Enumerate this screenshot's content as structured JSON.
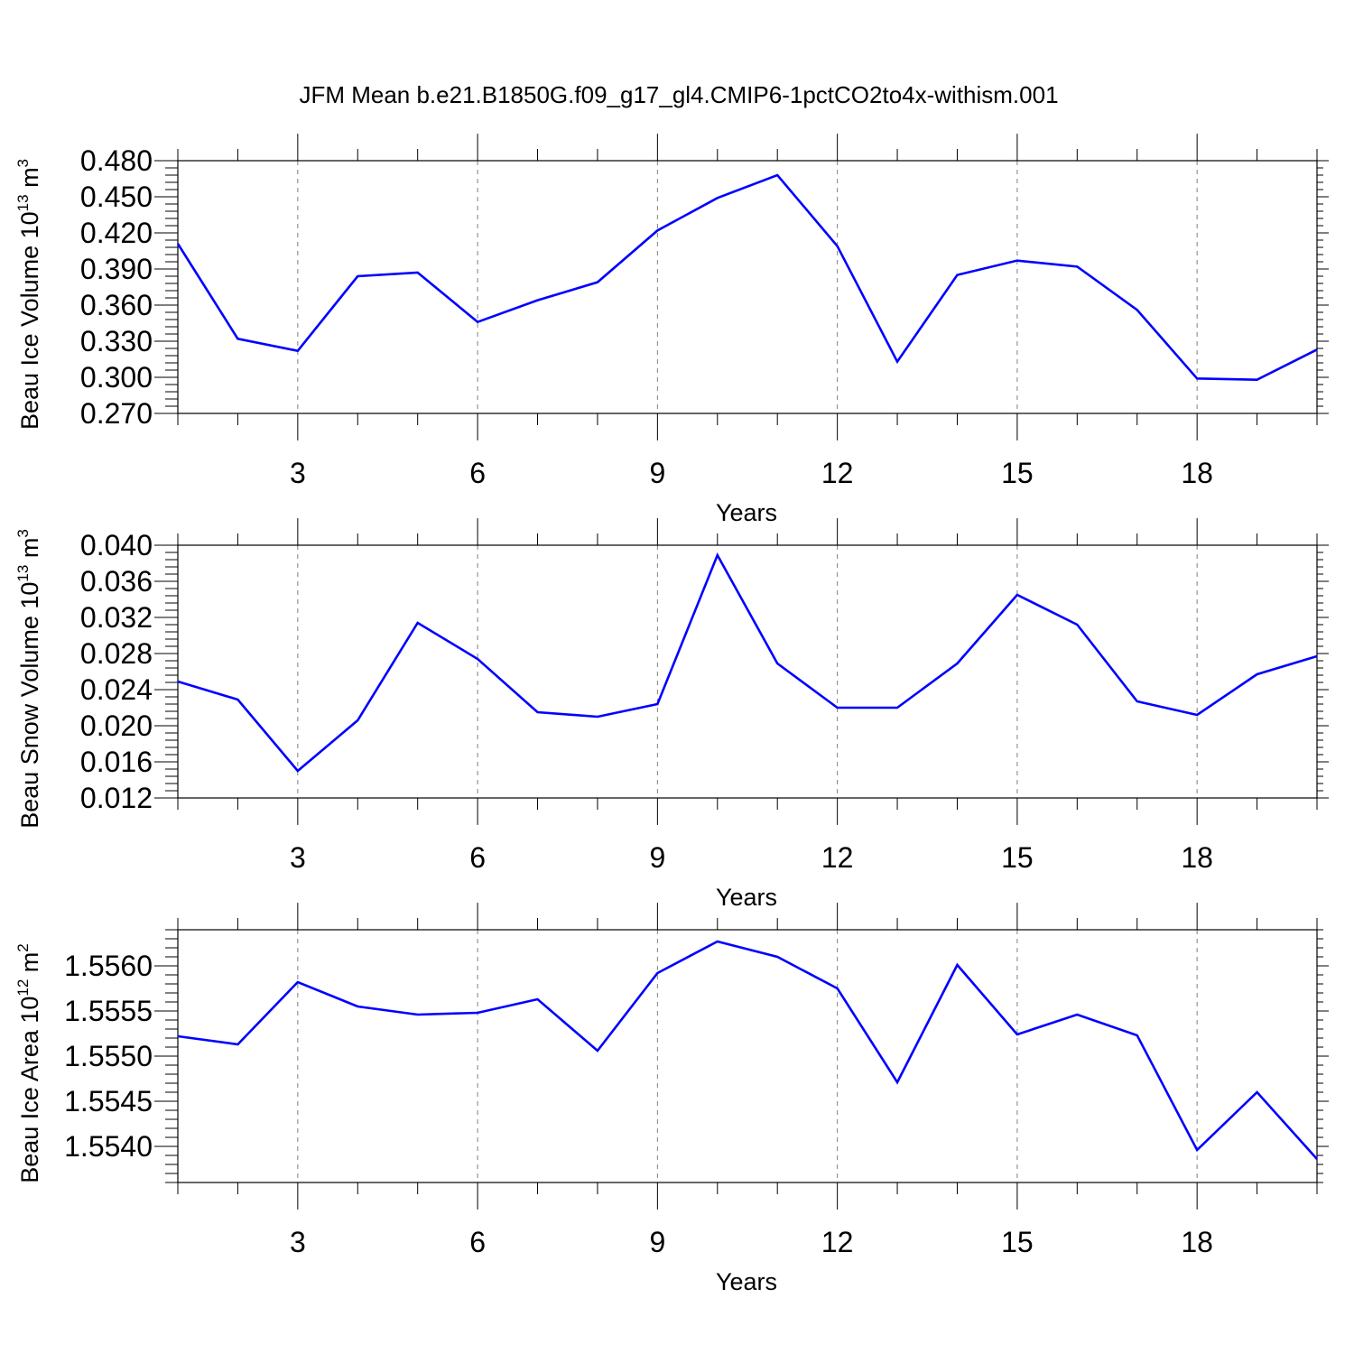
{
  "title": "JFM Mean b.e21.B1850G.f09_g17_gl4.CMIP6-1pctCO2to4x-withism.001",
  "colors": {
    "line": "#0000ff",
    "axis": "#000000",
    "grid": "#7f7f7f"
  },
  "chart_data": [
    {
      "type": "line",
      "ylabel": "Beau Ice Volume 10",
      "ylabel_exp": "13",
      "ylabel_unit": "m",
      "ylabel_unit_exp": "3",
      "xlabel": "Years",
      "xlim": [
        1,
        20
      ],
      "ylim": [
        0.27,
        0.48
      ],
      "x_ticks": [
        "3",
        "6",
        "9",
        "12",
        "15",
        "18"
      ],
      "y_ticks": [
        "0.270",
        "0.300",
        "0.330",
        "0.360",
        "0.390",
        "0.420",
        "0.450",
        "0.480"
      ],
      "grid": "vertical dashed at major x ticks",
      "x": [
        1,
        2,
        3,
        4,
        5,
        6,
        7,
        8,
        9,
        10,
        11,
        12,
        13,
        14,
        15,
        16,
        17,
        18,
        19,
        20
      ],
      "series": [
        {
          "values": [
            0.411,
            0.332,
            0.322,
            0.384,
            0.387,
            0.346,
            0.364,
            0.379,
            0.422,
            0.449,
            0.468,
            0.409,
            0.313,
            0.385,
            0.397,
            0.392,
            0.356,
            0.299,
            0.298,
            0.323
          ]
        }
      ]
    },
    {
      "type": "line",
      "ylabel": "Beau Snow Volume 10",
      "ylabel_exp": "13",
      "ylabel_unit": "m",
      "ylabel_unit_exp": "3",
      "xlabel": "Years",
      "xlim": [
        1,
        20
      ],
      "ylim": [
        0.012,
        0.04
      ],
      "x_ticks": [
        "3",
        "6",
        "9",
        "12",
        "15",
        "18"
      ],
      "y_ticks": [
        "0.012",
        "0.016",
        "0.020",
        "0.024",
        "0.028",
        "0.032",
        "0.036",
        "0.040"
      ],
      "grid": "vertical dashed at major x ticks",
      "x": [
        1,
        2,
        3,
        4,
        5,
        6,
        7,
        8,
        9,
        10,
        11,
        12,
        13,
        14,
        15,
        16,
        17,
        18,
        19,
        20
      ],
      "series": [
        {
          "values": [
            0.0249,
            0.0229,
            0.015,
            0.0206,
            0.0314,
            0.0274,
            0.0215,
            0.021,
            0.0224,
            0.0389,
            0.0269,
            0.022,
            0.022,
            0.0269,
            0.0345,
            0.0312,
            0.0227,
            0.0212,
            0.0257,
            0.0277
          ]
        }
      ]
    },
    {
      "type": "line",
      "ylabel": "Beau Ice Area 10",
      "ylabel_exp": "12",
      "ylabel_unit": "m",
      "ylabel_unit_exp": "2",
      "xlabel": "Years",
      "xlim": [
        1,
        20
      ],
      "ylim": [
        1.5536,
        1.5564
      ],
      "x_ticks": [
        "3",
        "6",
        "9",
        "12",
        "15",
        "18"
      ],
      "y_ticks": [
        "1.5540",
        "1.5545",
        "1.5550",
        "1.5555",
        "1.5560"
      ],
      "grid": "vertical dashed at major x ticks",
      "x": [
        1,
        2,
        3,
        4,
        5,
        6,
        7,
        8,
        9,
        10,
        11,
        12,
        13,
        14,
        15,
        16,
        17,
        18,
        19,
        20
      ],
      "series": [
        {
          "values": [
            1.55522,
            1.55513,
            1.55582,
            1.55555,
            1.55546,
            1.55548,
            1.55563,
            1.55506,
            1.55592,
            1.55627,
            1.5561,
            1.55575,
            1.55471,
            1.55601,
            1.55524,
            1.55546,
            1.55523,
            1.55396,
            1.5546,
            1.55386
          ]
        }
      ]
    }
  ]
}
